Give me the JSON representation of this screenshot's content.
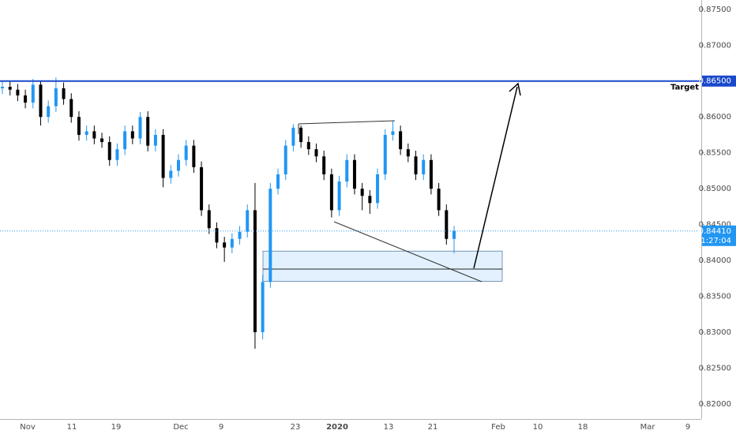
{
  "chart_data": {
    "type": "candlestick",
    "up_color": "#2196f3",
    "down_color": "#000000",
    "open": [
      0.864,
      0.8642,
      0.8638,
      0.863,
      0.862,
      0.8645,
      0.86,
      0.8615,
      0.864,
      0.8625,
      0.86,
      0.8575,
      0.858,
      0.857,
      0.8565,
      0.854,
      0.8555,
      0.858,
      0.857,
      0.86,
      0.856,
      0.8575,
      0.8515,
      0.8525,
      0.854,
      0.856,
      0.853,
      0.847,
      0.8445,
      0.8425,
      0.8418,
      0.843,
      0.844,
      0.847,
      0.83,
      0.837,
      0.85,
      0.852,
      0.856,
      0.8585,
      0.8565,
      0.8555,
      0.8545,
      0.852,
      0.847,
      0.851,
      0.854,
      0.85,
      0.849,
      0.848,
      0.852,
      0.8575,
      0.858,
      0.8555,
      0.8545,
      0.852,
      0.854,
      0.85,
      0.847,
      0.843
    ],
    "high": [
      0.865,
      0.865,
      0.8646,
      0.8638,
      0.8653,
      0.865,
      0.8623,
      0.8655,
      0.8648,
      0.8633,
      0.8608,
      0.8588,
      0.8588,
      0.8578,
      0.8573,
      0.8563,
      0.8588,
      0.8588,
      0.8607,
      0.8608,
      0.8583,
      0.8583,
      0.8533,
      0.8548,
      0.8568,
      0.8568,
      0.8538,
      0.8478,
      0.8453,
      0.8433,
      0.8438,
      0.8448,
      0.8478,
      0.8508,
      0.838,
      0.8508,
      0.8528,
      0.8568,
      0.859,
      0.8588,
      0.8573,
      0.8563,
      0.8553,
      0.8528,
      0.8518,
      0.8548,
      0.8548,
      0.8508,
      0.8498,
      0.8528,
      0.8583,
      0.8595,
      0.8588,
      0.8563,
      0.8553,
      0.8548,
      0.8548,
      0.8508,
      0.8478,
      0.8448
    ],
    "low": [
      0.8632,
      0.863,
      0.8622,
      0.8612,
      0.8612,
      0.8588,
      0.8592,
      0.8607,
      0.8617,
      0.8592,
      0.8567,
      0.8567,
      0.8562,
      0.8557,
      0.8532,
      0.8532,
      0.8547,
      0.8562,
      0.8562,
      0.8552,
      0.8552,
      0.8502,
      0.8507,
      0.8517,
      0.8532,
      0.8522,
      0.8462,
      0.8437,
      0.8417,
      0.8398,
      0.841,
      0.8422,
      0.8432,
      0.8277,
      0.829,
      0.8362,
      0.8492,
      0.8512,
      0.8552,
      0.8557,
      0.8547,
      0.8537,
      0.8512,
      0.846,
      0.8462,
      0.8502,
      0.8492,
      0.847,
      0.8465,
      0.8472,
      0.8512,
      0.8567,
      0.8547,
      0.8537,
      0.8512,
      0.8512,
      0.8492,
      0.8462,
      0.8422,
      0.841
    ],
    "close": [
      0.8642,
      0.8638,
      0.863,
      0.862,
      0.8645,
      0.86,
      0.8615,
      0.864,
      0.8625,
      0.86,
      0.8575,
      0.858,
      0.857,
      0.8565,
      0.854,
      0.8555,
      0.858,
      0.857,
      0.86,
      0.856,
      0.8575,
      0.8515,
      0.8525,
      0.854,
      0.856,
      0.853,
      0.847,
      0.8445,
      0.8425,
      0.8418,
      0.843,
      0.844,
      0.847,
      0.83,
      0.837,
      0.85,
      0.852,
      0.856,
      0.8585,
      0.8565,
      0.8555,
      0.8545,
      0.852,
      0.847,
      0.851,
      0.854,
      0.85,
      0.849,
      0.848,
      0.852,
      0.8575,
      0.858,
      0.8555,
      0.8545,
      0.852,
      0.854,
      0.85,
      0.847,
      0.843,
      0.8441
    ],
    "x_labels": [
      "Nov",
      "11",
      "19",
      "Dec",
      "9",
      "23",
      "2020",
      "13",
      "21",
      "Feb",
      "10",
      "18",
      "Mar",
      "9"
    ],
    "ylim": [
      0.8179,
      0.8763
    ],
    "yticks": [
      {
        "value": 0.82,
        "label": "0.82000"
      },
      {
        "value": 0.825,
        "label": "0.82500"
      },
      {
        "value": 0.83,
        "label": "0.83000"
      },
      {
        "value": 0.835,
        "label": "0.83500"
      },
      {
        "value": 0.84,
        "label": "0.84000"
      },
      {
        "value": 0.845,
        "label": "0.84500"
      },
      {
        "value": 0.85,
        "label": "0.85000"
      },
      {
        "value": 0.855,
        "label": "0.85500"
      },
      {
        "value": 0.86,
        "label": "0.86000"
      },
      {
        "value": 0.865,
        "label": "0.86500"
      },
      {
        "value": 0.87,
        "label": "0.87000"
      },
      {
        "value": 0.875,
        "label": "0.87500"
      }
    ],
    "target": {
      "label": "Target",
      "value": 0.865,
      "value_label": "0.86500",
      "color": "#1848cc"
    },
    "current": {
      "value": 0.8441,
      "label": "0.84410",
      "countdown": "01:27:04",
      "color": "#2196f3"
    },
    "zone": {
      "top": 0.8413,
      "bottom": 0.8371,
      "mid": 0.8388
    }
  }
}
